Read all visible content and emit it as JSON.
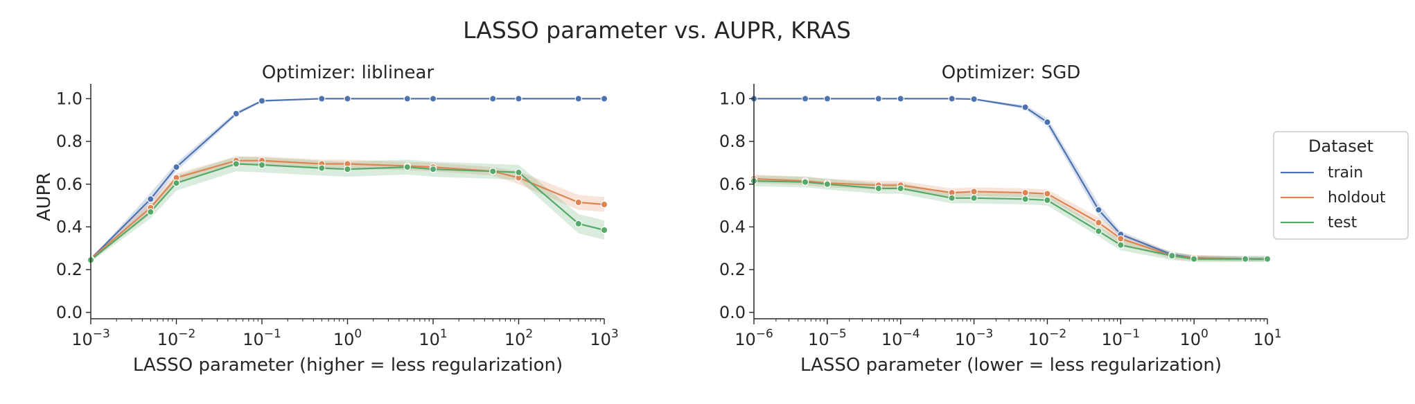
{
  "figure": {
    "title": "LASSO parameter vs. AUPR, KRAS"
  },
  "legend": {
    "title": "Dataset",
    "placement": "right",
    "entries": [
      {
        "label": "train",
        "color": "#4c72b0"
      },
      {
        "label": "holdout",
        "color": "#dd8452"
      },
      {
        "label": "test",
        "color": "#55a868"
      }
    ]
  },
  "chart_data": [
    {
      "type": "line",
      "title": "Optimizer: liblinear",
      "xlabel": "LASSO parameter (higher = less regularization)",
      "ylabel": "AUPR",
      "xscale": "log",
      "xlim": [
        0.001,
        1000
      ],
      "ylim": [
        -0.03,
        1.05
      ],
      "xticks": [
        {
          "base": "10",
          "exp": "−3"
        },
        {
          "base": "10",
          "exp": "−2"
        },
        {
          "base": "10",
          "exp": "−1"
        },
        {
          "base": "10",
          "exp": "0"
        },
        {
          "base": "10",
          "exp": "1"
        },
        {
          "base": "10",
          "exp": "2"
        },
        {
          "base": "10",
          "exp": "3"
        }
      ],
      "xtick_values": [
        0.001,
        0.01,
        0.1,
        1,
        10,
        100,
        1000
      ],
      "yticks": [
        "0.0",
        "0.2",
        "0.4",
        "0.6",
        "0.8",
        "1.0"
      ],
      "ytick_values": [
        0.0,
        0.2,
        0.4,
        0.6,
        0.8,
        1.0
      ],
      "grid": false,
      "x": [
        0.001,
        0.005,
        0.01,
        0.05,
        0.1,
        0.5,
        1,
        5,
        10,
        50,
        100,
        500,
        1000
      ],
      "series": [
        {
          "name": "train",
          "color": "#4c72b0",
          "values": [
            0.25,
            0.53,
            0.68,
            0.93,
            0.99,
            1.0,
            1.0,
            1.0,
            1.0,
            1.0,
            1.0,
            1.0,
            1.0
          ],
          "lower": [
            0.25,
            0.5,
            0.66,
            0.92,
            0.985,
            1.0,
            1.0,
            1.0,
            1.0,
            1.0,
            1.0,
            1.0,
            1.0
          ],
          "upper": [
            0.25,
            0.56,
            0.7,
            0.94,
            0.995,
            1.0,
            1.0,
            1.0,
            1.0,
            1.0,
            1.0,
            1.0,
            1.0
          ]
        },
        {
          "name": "holdout",
          "color": "#dd8452",
          "values": [
            0.25,
            0.49,
            0.63,
            0.71,
            0.71,
            0.695,
            0.695,
            0.685,
            0.68,
            0.66,
            0.63,
            0.515,
            0.505
          ],
          "lower": [
            0.24,
            0.46,
            0.61,
            0.69,
            0.69,
            0.675,
            0.675,
            0.665,
            0.66,
            0.64,
            0.6,
            0.48,
            0.47
          ],
          "upper": [
            0.26,
            0.52,
            0.65,
            0.73,
            0.73,
            0.715,
            0.715,
            0.705,
            0.7,
            0.68,
            0.66,
            0.55,
            0.54
          ]
        },
        {
          "name": "test",
          "color": "#55a868",
          "values": [
            0.245,
            0.47,
            0.605,
            0.695,
            0.69,
            0.675,
            0.67,
            0.68,
            0.67,
            0.66,
            0.655,
            0.415,
            0.385
          ],
          "lower": [
            0.235,
            0.44,
            0.57,
            0.66,
            0.655,
            0.64,
            0.635,
            0.645,
            0.635,
            0.625,
            0.62,
            0.37,
            0.34
          ],
          "upper": [
            0.255,
            0.5,
            0.64,
            0.73,
            0.725,
            0.71,
            0.705,
            0.715,
            0.705,
            0.695,
            0.69,
            0.46,
            0.43
          ]
        }
      ]
    },
    {
      "type": "line",
      "title": "Optimizer: SGD",
      "xlabel": "LASSO parameter (lower = less regularization)",
      "ylabel": "",
      "xscale": "log",
      "xlim": [
        1e-06,
        10
      ],
      "ylim": [
        -0.03,
        1.05
      ],
      "xticks": [
        {
          "base": "10",
          "exp": "−6"
        },
        {
          "base": "10",
          "exp": "−5"
        },
        {
          "base": "10",
          "exp": "−4"
        },
        {
          "base": "10",
          "exp": "−3"
        },
        {
          "base": "10",
          "exp": "−2"
        },
        {
          "base": "10",
          "exp": "−1"
        },
        {
          "base": "10",
          "exp": "0"
        },
        {
          "base": "10",
          "exp": "1"
        }
      ],
      "xtick_values": [
        1e-06,
        1e-05,
        0.0001,
        0.001,
        0.01,
        0.1,
        1,
        10
      ],
      "yticks": [
        "0.0",
        "0.2",
        "0.4",
        "0.6",
        "0.8",
        "1.0"
      ],
      "ytick_values": [
        0.0,
        0.2,
        0.4,
        0.6,
        0.8,
        1.0
      ],
      "grid": false,
      "x": [
        1e-06,
        5e-06,
        1e-05,
        5e-05,
        0.0001,
        0.0005,
        0.001,
        0.005,
        0.01,
        0.05,
        0.1,
        0.5,
        1,
        5,
        10
      ],
      "series": [
        {
          "name": "train",
          "color": "#4c72b0",
          "values": [
            1.0,
            1.0,
            1.0,
            1.0,
            1.0,
            1.0,
            0.998,
            0.96,
            0.89,
            0.48,
            0.365,
            0.27,
            0.255,
            0.25,
            0.25
          ],
          "lower": [
            1.0,
            1.0,
            1.0,
            1.0,
            1.0,
            1.0,
            0.995,
            0.95,
            0.87,
            0.45,
            0.35,
            0.26,
            0.245,
            0.24,
            0.24
          ],
          "upper": [
            1.0,
            1.0,
            1.0,
            1.0,
            1.0,
            1.0,
            1.0,
            0.97,
            0.91,
            0.51,
            0.38,
            0.28,
            0.265,
            0.26,
            0.26
          ]
        },
        {
          "name": "holdout",
          "color": "#dd8452",
          "values": [
            0.625,
            0.615,
            0.605,
            0.595,
            0.595,
            0.56,
            0.565,
            0.56,
            0.555,
            0.42,
            0.345,
            0.265,
            0.255,
            0.25,
            0.25
          ],
          "lower": [
            0.605,
            0.595,
            0.585,
            0.575,
            0.575,
            0.54,
            0.545,
            0.54,
            0.535,
            0.395,
            0.32,
            0.25,
            0.24,
            0.24,
            0.24
          ],
          "upper": [
            0.645,
            0.635,
            0.625,
            0.615,
            0.615,
            0.58,
            0.585,
            0.58,
            0.575,
            0.445,
            0.37,
            0.28,
            0.27,
            0.26,
            0.26
          ]
        },
        {
          "name": "test",
          "color": "#55a868",
          "values": [
            0.615,
            0.61,
            0.6,
            0.58,
            0.58,
            0.535,
            0.535,
            0.53,
            0.525,
            0.38,
            0.315,
            0.265,
            0.25,
            0.25,
            0.25
          ],
          "lower": [
            0.59,
            0.585,
            0.575,
            0.555,
            0.555,
            0.51,
            0.51,
            0.505,
            0.5,
            0.355,
            0.29,
            0.245,
            0.235,
            0.235,
            0.235
          ],
          "upper": [
            0.64,
            0.635,
            0.625,
            0.605,
            0.605,
            0.56,
            0.56,
            0.555,
            0.55,
            0.405,
            0.34,
            0.285,
            0.265,
            0.265,
            0.265
          ]
        }
      ]
    }
  ]
}
